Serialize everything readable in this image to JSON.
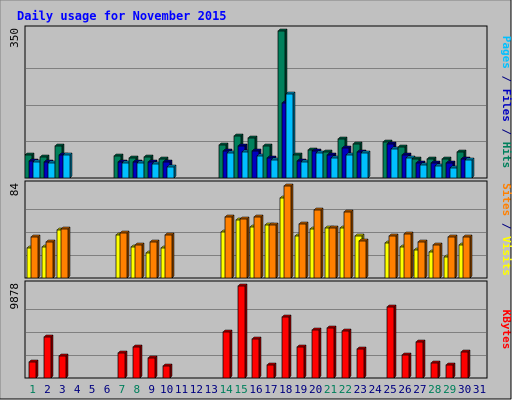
{
  "chart_data": {
    "type": "bar",
    "title": "Daily usage for November 2015",
    "days": [
      "1",
      "2",
      "3",
      "4",
      "5",
      "6",
      "7",
      "8",
      "9",
      "10",
      "11",
      "12",
      "13",
      "14",
      "15",
      "16",
      "17",
      "18",
      "19",
      "20",
      "21",
      "22",
      "23",
      "24",
      "25",
      "26",
      "27",
      "28",
      "29",
      "30",
      "31"
    ],
    "weekend_days": [
      "1",
      "7",
      "8",
      "14",
      "15",
      "21",
      "22",
      "28",
      "29"
    ],
    "panels": [
      {
        "name": "hits-files-pages",
        "max_label": "350",
        "ymax": 350,
        "axis_label_parts": [
          {
            "text": "Pages",
            "color": "#00c0ff"
          },
          {
            "text": " / ",
            "color": "#000080"
          },
          {
            "text": "Files",
            "color": "#0000c0"
          },
          {
            "text": " / ",
            "color": "#000080"
          },
          {
            "text": "Hits",
            "color": "#00805c"
          }
        ],
        "series": [
          {
            "name": "Hits",
            "color": "#00805c",
            "values": [
              55,
              50,
              75,
              0,
              0,
              0,
              52,
              48,
              50,
              45,
              0,
              0,
              0,
              78,
              100,
              95,
              75,
              350,
              55,
              67,
              63,
              93,
              81,
              0,
              86,
              73,
              45,
              45,
              45,
              62,
              0
            ]
          },
          {
            "name": "Files",
            "color": "#0000c0",
            "values": [
              40,
              39,
              55,
              0,
              0,
              0,
              38,
              37,
              38,
              37,
              0,
              0,
              0,
              65,
              75,
              65,
              48,
              178,
              40,
              65,
              55,
              72,
              62,
              0,
              80,
              55,
              35,
              35,
              35,
              45,
              0
            ]
          },
          {
            "name": "Pages",
            "color": "#00c0ff",
            "values": [
              38,
              36,
              55,
              0,
              0,
              0,
              36,
              35,
              34,
              25,
              0,
              0,
              0,
              60,
              63,
              52,
              44,
              200,
              38,
              60,
              47,
              54,
              60,
              0,
              68,
              48,
              31,
              28,
              24,
              43,
              0
            ]
          }
        ]
      },
      {
        "name": "visits-sites",
        "max_label": "84",
        "ymax": 84,
        "axis_label_parts": [
          {
            "text": "Sites",
            "color": "#ff8000"
          },
          {
            "text": " / ",
            "color": "#000080"
          },
          {
            "text": "Visits",
            "color": "#ffff00"
          }
        ],
        "series": [
          {
            "name": "Visits",
            "color": "#ffff00",
            "values": [
              27,
              28,
              44,
              0,
              0,
              0,
              39,
              28,
              23,
              27,
              0,
              0,
              0,
              42,
              53,
              47,
              48,
              73,
              38,
              45,
              46,
              46,
              38,
              0,
              32,
              28,
              26,
              24,
              19,
              30,
              0
            ]
          },
          {
            "name": "Sites",
            "color": "#ff8000",
            "values": [
              37,
              33,
              45,
              0,
              0,
              0,
              41,
              30,
              33,
              39,
              0,
              0,
              0,
              56,
              54,
              56,
              48,
              84,
              49,
              62,
              46,
              60,
              34,
              0,
              38,
              40,
              33,
              30,
              37,
              37,
              0
            ]
          }
        ]
      },
      {
        "name": "kbytes",
        "max_label": "9878",
        "ymax": 9878,
        "axis_label_parts": [
          {
            "text": "KBytes",
            "color": "#ff0000"
          }
        ],
        "series": [
          {
            "name": "KBytes",
            "color": "#ff0000",
            "values": [
              1700,
              4400,
              2400,
              0,
              0,
              0,
              2700,
              3300,
              2100,
              1300,
              0,
              0,
              0,
              4900,
              9878,
              4200,
              1400,
              6600,
              3300,
              5200,
              5400,
              5000,
              3100,
              0,
              7600,
              2500,
              3900,
              1600,
              1400,
              2800,
              0
            ]
          }
        ]
      }
    ],
    "colors": {
      "background": "#c0c0c0",
      "title": "#0000ff",
      "weekday_label": "#000080",
      "weekend_label": "#00805c",
      "gridline": "#808080"
    }
  }
}
